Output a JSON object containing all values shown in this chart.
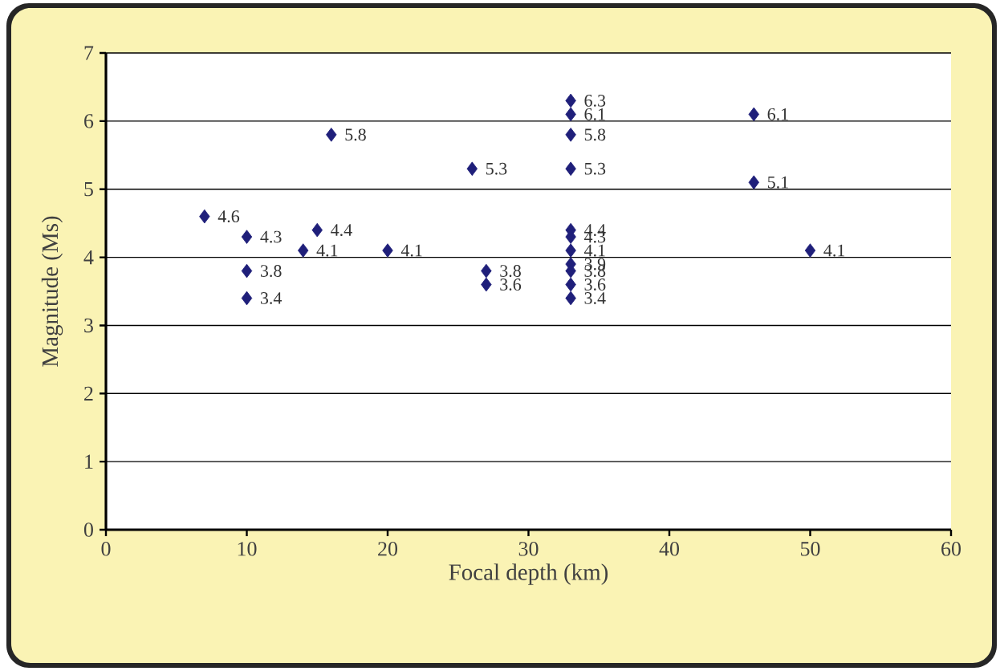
{
  "chart_data": {
    "type": "scatter",
    "xlabel": "Focal depth (km)",
    "ylabel": "Magnitude (Ms)",
    "x": [
      7,
      10,
      10,
      10,
      14,
      15,
      16,
      20,
      26,
      27,
      27,
      33,
      33,
      33,
      33,
      33,
      33,
      33,
      33,
      33,
      33,
      33,
      46,
      46,
      50
    ],
    "values": [
      4.6,
      4.3,
      3.8,
      3.4,
      4.1,
      4.4,
      5.8,
      4.1,
      5.3,
      3.8,
      3.6,
      6.3,
      6.1,
      5.8,
      5.3,
      4.4,
      4.3,
      4.1,
      3.9,
      3.8,
      3.6,
      3.4,
      6.1,
      5.1,
      4.1
    ],
    "color": "#1f1f7a",
    "marker": "diamond",
    "data_labels": true,
    "grid": "y",
    "xlim": [
      0,
      60
    ],
    "xticks": [
      0,
      10,
      20,
      30,
      40,
      50,
      60
    ],
    "ylim": [
      0,
      7
    ],
    "yticks": [
      0,
      1,
      2,
      3,
      4,
      5,
      6,
      7
    ]
  }
}
